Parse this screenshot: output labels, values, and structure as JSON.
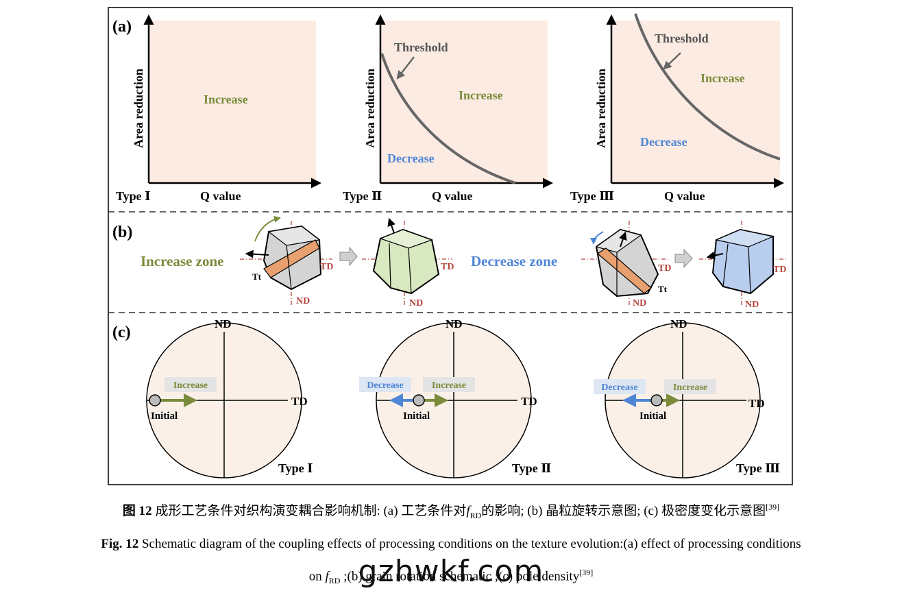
{
  "panels": {
    "a": {
      "label": "(a)",
      "ylabel": "Area reduction",
      "xlabel": "Q value",
      "threshold": "Threshold",
      "increase": "Increase",
      "decrease": "Decrease",
      "types": [
        "Type Ⅰ",
        "Type Ⅱ",
        "Type Ⅲ"
      ]
    },
    "b": {
      "label": "(b)",
      "increase_zone": "Increase zone",
      "decrease_zone": "Decrease zone",
      "td": "TD",
      "nd": "ND",
      "tt": "Tt"
    },
    "c": {
      "label": "(c)",
      "nd": "ND",
      "td": "TD",
      "initial": "Initial",
      "increase": "Increase",
      "decrease": "Decrease",
      "types": [
        "Type Ⅰ",
        "Type Ⅱ",
        "Type Ⅲ"
      ]
    }
  },
  "caption": {
    "cn_label": "图 12",
    "cn_text_1": "成形工艺条件对织构演变耦合影响机制: (a) 工艺条件对",
    "cn_f": "f",
    "cn_sub": "RD",
    "cn_text_2": "的影响; (b) 晶粒旋转示意图; (c) 极密度变化示意图",
    "cn_ref": "[39]",
    "en_label": "Fig. 12",
    "en_text_1": "Schematic diagram of the coupling effects of processing conditions on the texture evolution:(a) effect of processing conditions",
    "en_text_2a": "on",
    "en_f": "f",
    "en_sub": "RD",
    "en_text_2b": ";(b) grain rotation schematic ;(c) pole density",
    "en_ref": "[39]"
  },
  "watermark": "gzhwkf.com",
  "colors": {
    "panel_fill": "#fcebe2",
    "pole_fill": "#fbf0e8",
    "increase_green": "#7a8c3c",
    "decrease_blue": "#4f86d6",
    "threshold_gray": "#666666",
    "axis_red": "#b5443d",
    "band_orange": "#e8a070",
    "cube_gray": "#d4d4d4",
    "cube_green": "#d8e8c0",
    "cube_blue": "#b9cdee"
  }
}
